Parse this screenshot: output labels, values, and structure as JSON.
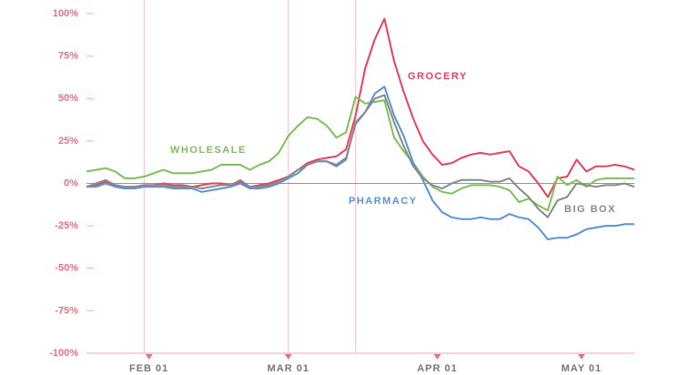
{
  "chart_data": {
    "type": "line",
    "x": [
      19,
      21,
      23,
      25,
      27,
      29,
      31,
      33,
      35,
      37,
      39,
      41,
      43,
      45,
      47,
      49,
      51,
      53,
      55,
      57,
      59,
      61,
      63,
      65,
      67,
      69,
      71,
      73,
      75,
      77,
      79,
      81,
      83,
      85,
      87,
      89,
      91,
      93,
      95,
      97,
      99,
      101,
      103,
      105,
      107,
      109,
      111,
      113,
      115,
      117,
      119,
      121,
      123,
      125,
      127,
      129,
      131,
      133
    ],
    "xlim": [
      19,
      133
    ],
    "xticks": [
      {
        "value": 32,
        "label": "FEB 01"
      },
      {
        "value": 61,
        "label": "MAR 01"
      },
      {
        "value": 92,
        "label": "APR 01"
      },
      {
        "value": 122,
        "label": "MAY 01"
      }
    ],
    "reference_lines": [
      31,
      61,
      75
    ],
    "ylim": [
      -100,
      100
    ],
    "yticks": [
      {
        "value": 100,
        "label": "100%"
      },
      {
        "value": 75,
        "label": "75%"
      },
      {
        "value": 50,
        "label": "50%"
      },
      {
        "value": 25,
        "label": "25%"
      },
      {
        "value": 0,
        "label": "0%"
      },
      {
        "value": -25,
        "label": "-25%"
      },
      {
        "value": -50,
        "label": "-50%"
      },
      {
        "value": -75,
        "label": "-75%"
      },
      {
        "value": -100,
        "label": "-100%"
      }
    ],
    "series": [
      {
        "name": "GROCERY",
        "color": "#ef3f5a",
        "values": [
          -2,
          -1,
          1,
          -1,
          -2,
          -2,
          -1,
          -1,
          0,
          -1,
          -1,
          -2,
          -1,
          0,
          0,
          -1,
          1,
          -2,
          -1,
          0,
          2,
          4,
          8,
          12,
          14,
          15,
          16,
          20,
          40,
          68,
          85,
          97,
          72,
          54,
          38,
          25,
          17,
          11,
          12,
          15,
          17,
          18,
          17,
          18,
          19,
          10,
          7,
          0,
          -8,
          3,
          4,
          14,
          7,
          10,
          10,
          11,
          10,
          8
        ]
      },
      {
        "name": "WHOLESALE",
        "color": "#7cc25a",
        "values": [
          7,
          8,
          9,
          7,
          3,
          3,
          4,
          6,
          8,
          6,
          6,
          6,
          7,
          8,
          11,
          11,
          11,
          8,
          11,
          13,
          18,
          28,
          34,
          39,
          38,
          34,
          27,
          30,
          51,
          47,
          48,
          49,
          27,
          19,
          12,
          4,
          -2,
          -5,
          -6,
          -3,
          -1,
          -1,
          -1,
          -2,
          -4,
          -11,
          -9,
          -13,
          -16,
          4,
          -1,
          2,
          -2,
          2,
          3,
          3,
          3,
          3
        ]
      },
      {
        "name": "PHARMACY",
        "color": "#5b92db",
        "values": [
          -2,
          -2,
          0,
          -2,
          -3,
          -3,
          -2,
          -2,
          -2,
          -3,
          -3,
          -3,
          -5,
          -4,
          -3,
          -2,
          0,
          -3,
          -3,
          -2,
          0,
          3,
          6,
          11,
          13,
          13,
          11,
          15,
          35,
          42,
          53,
          57,
          40,
          28,
          12,
          2,
          -10,
          -17,
          -20,
          -21,
          -21,
          -20,
          -21,
          -21,
          -18,
          -20,
          -21,
          -26,
          -33,
          -32,
          -32,
          -30,
          -27,
          -26,
          -25,
          -25,
          -24,
          -24
        ]
      },
      {
        "name": "BIG BOX",
        "color": "#8a8a8a",
        "values": [
          -2,
          0,
          2,
          -1,
          -2,
          -2,
          -1,
          -1,
          -1,
          -2,
          -2,
          -2,
          -3,
          -2,
          -1,
          -1,
          2,
          -2,
          -2,
          -1,
          1,
          4,
          8,
          11,
          13,
          13,
          10,
          14,
          36,
          42,
          50,
          52,
          36,
          22,
          10,
          3,
          -1,
          -3,
          0,
          2,
          2,
          2,
          1,
          1,
          3,
          -3,
          -8,
          -15,
          -20,
          -10,
          -8,
          0,
          -1,
          -2,
          -1,
          -1,
          0,
          -2
        ]
      }
    ]
  }
}
